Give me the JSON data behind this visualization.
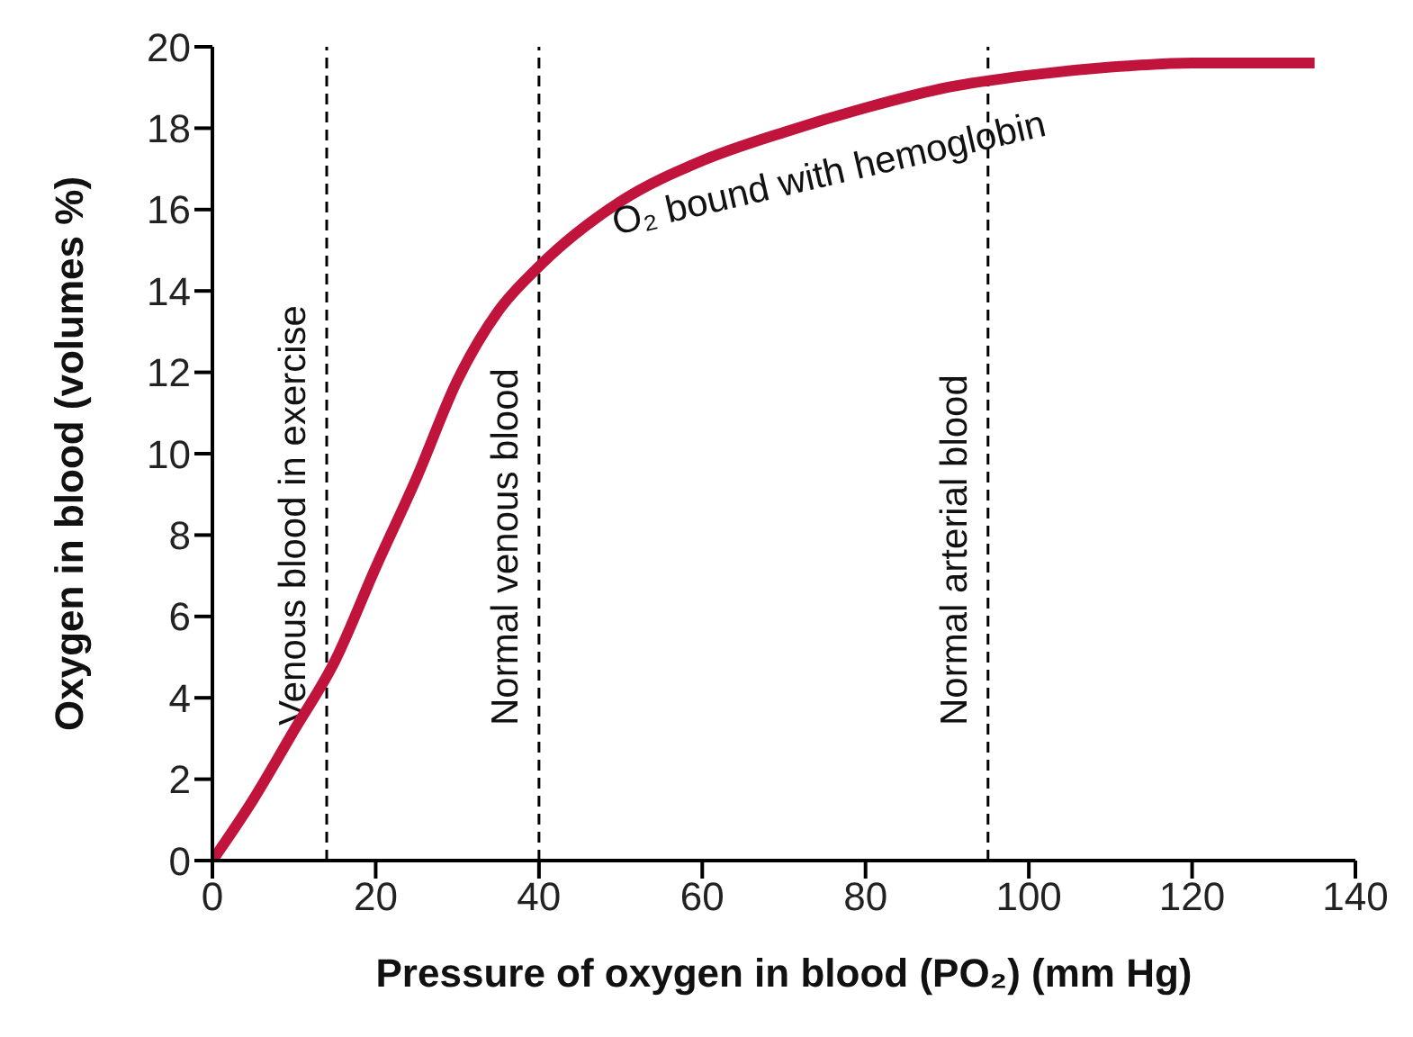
{
  "chart_data": {
    "type": "line",
    "xlabel": "Pressure of oxygen in blood (PO₂) (mm Hg)",
    "ylabel": "Oxygen in blood (volumes %)",
    "x": [
      0,
      5,
      10,
      15,
      20,
      25,
      30,
      35,
      40,
      50,
      60,
      70,
      80,
      90,
      100,
      110,
      120,
      135
    ],
    "series": [
      {
        "color": "#c0143c",
        "values": [
          0,
          1.5,
          3.2,
          4.9,
          7.2,
          9.4,
          11.8,
          13.5,
          14.6,
          16.2,
          17.2,
          17.9,
          18.5,
          19,
          19.3,
          19.5,
          19.6,
          19.6
        ]
      }
    ],
    "xlim": [
      0,
      140
    ],
    "xticks": [
      0,
      20,
      40,
      60,
      80,
      100,
      120,
      140
    ],
    "ylim": [
      0,
      20
    ],
    "yticks": [
      0,
      2,
      4,
      6,
      8,
      10,
      12,
      14,
      16,
      18,
      20
    ],
    "ref_lines": [
      {
        "axis": "x",
        "value": 14,
        "label": "Venous blood in exercise",
        "line_style": "dashed"
      },
      {
        "axis": "x",
        "value": 40,
        "label": "Normal venous blood",
        "line_style": "dashed"
      },
      {
        "axis": "x",
        "value": 95,
        "label": "Normal arterial blood",
        "line_style": "dashed"
      }
    ],
    "annotations": [
      "O₂ bound with hemoglobin"
    ],
    "grid": false,
    "legend": false,
    "marker": "none",
    "line_style": "solid"
  }
}
